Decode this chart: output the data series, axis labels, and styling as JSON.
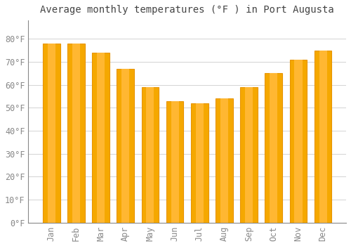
{
  "title": "Average monthly temperatures (°F ) in Port Augusta",
  "months": [
    "Jan",
    "Feb",
    "Mar",
    "Apr",
    "May",
    "Jun",
    "Jul",
    "Aug",
    "Sep",
    "Oct",
    "Nov",
    "Dec"
  ],
  "values": [
    78,
    78,
    74,
    67,
    59,
    53,
    52,
    54,
    59,
    65,
    71,
    75
  ],
  "bar_color_light": "#FFB732",
  "bar_color_dark": "#F5A800",
  "bar_edge_color": "#E89400",
  "background_color": "#FFFFFF",
  "grid_color": "#CCCCCC",
  "ylim": [
    0,
    88
  ],
  "yticks": [
    0,
    10,
    20,
    30,
    40,
    50,
    60,
    70,
    80
  ],
  "ytick_labels": [
    "0°F",
    "10°F",
    "20°F",
    "30°F",
    "40°F",
    "50°F",
    "60°F",
    "70°F",
    "80°F"
  ],
  "title_fontsize": 10,
  "tick_fontsize": 8.5,
  "tick_color": "#888888",
  "title_color": "#444444",
  "xlabel_rotation": 90,
  "bar_width": 0.7
}
